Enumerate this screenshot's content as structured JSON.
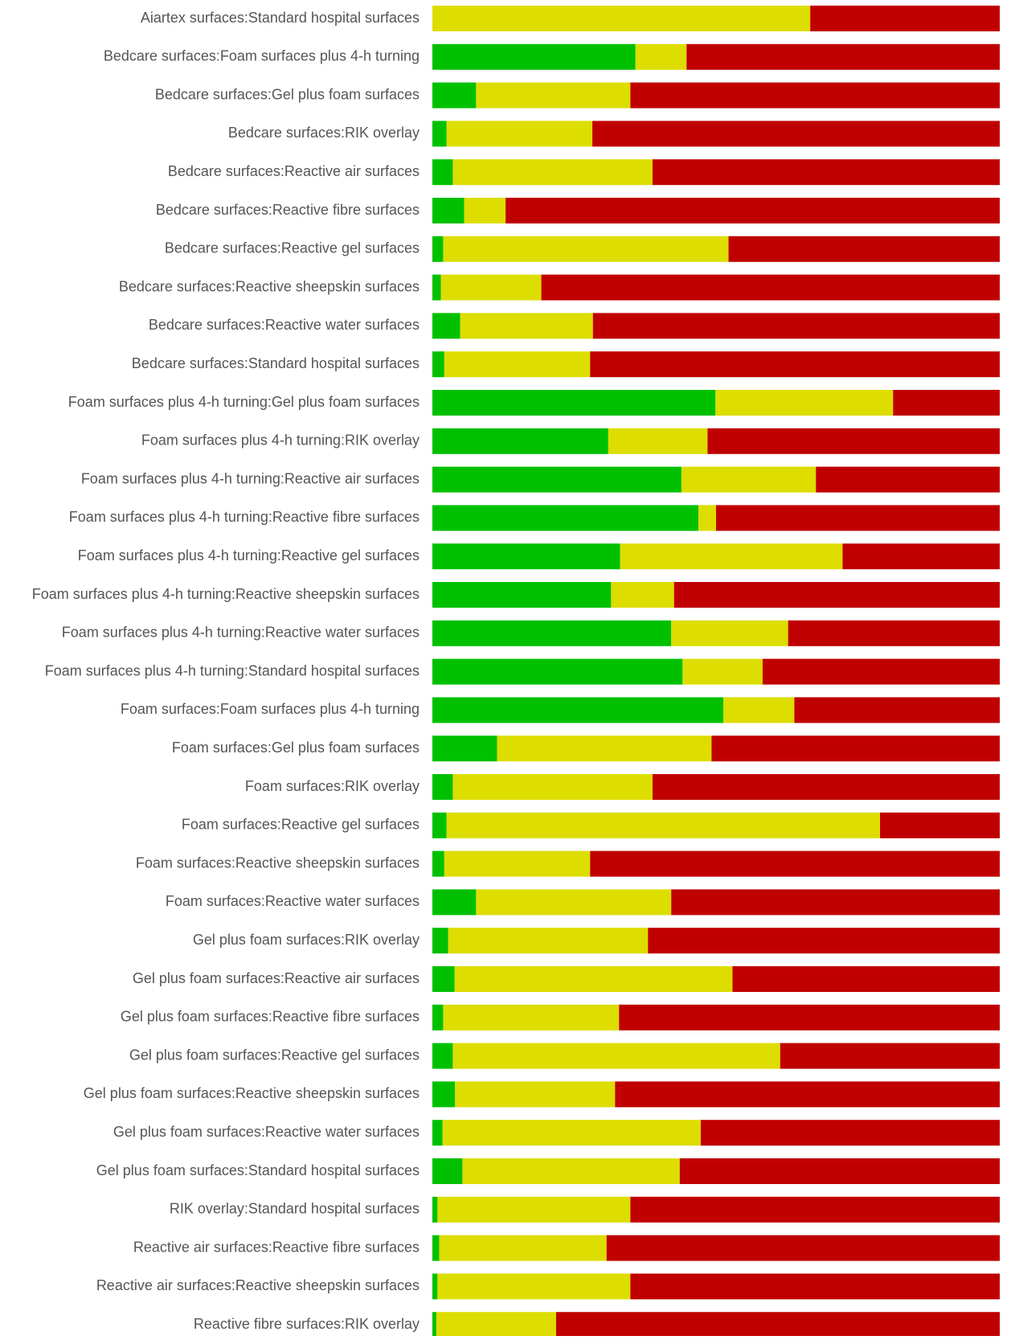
{
  "chart_data": {
    "type": "stacked-bar-horizontal",
    "categories": [
      "Aiartex surfaces:Standard hospital surfaces",
      "Bedcare surfaces:Foam surfaces plus 4-h turning",
      "Bedcare surfaces:Gel plus foam surfaces",
      "Bedcare surfaces:RIK overlay",
      "Bedcare surfaces:Reactive air surfaces",
      "Bedcare surfaces:Reactive fibre surfaces",
      "Bedcare surfaces:Reactive gel surfaces",
      "Bedcare surfaces:Reactive sheepskin surfaces",
      "Bedcare surfaces:Reactive water surfaces",
      "Bedcare surfaces:Standard hospital surfaces",
      "Foam surfaces plus 4-h turning:Gel plus foam surfaces",
      "Foam surfaces plus 4-h turning:RIK overlay",
      "Foam surfaces plus 4-h turning:Reactive air surfaces",
      "Foam surfaces plus 4-h turning:Reactive fibre surfaces",
      "Foam surfaces plus 4-h turning:Reactive gel surfaces",
      "Foam surfaces plus 4-h turning:Reactive sheepskin surfaces",
      "Foam surfaces plus 4-h turning:Reactive water surfaces",
      "Foam surfaces plus 4-h turning:Standard hospital surfaces",
      "Foam surfaces:Foam surfaces plus 4-h turning",
      "Foam surfaces:Gel plus foam surfaces",
      "Foam surfaces:RIK overlay",
      "Foam surfaces:Reactive gel surfaces",
      "Foam surfaces:Reactive sheepskin surfaces",
      "Foam surfaces:Reactive water surfaces",
      "Gel plus foam surfaces:RIK overlay",
      "Gel plus foam surfaces:Reactive air surfaces",
      "Gel plus foam surfaces:Reactive fibre surfaces",
      "Gel plus foam surfaces:Reactive gel surfaces",
      "Gel plus foam surfaces:Reactive sheepskin surfaces",
      "Gel plus foam surfaces:Reactive water surfaces",
      "Gel plus foam surfaces:Standard hospital surfaces",
      "RIK overlay:Standard hospital surfaces",
      "Reactive air surfaces:Reactive fibre surfaces",
      "Reactive air surfaces:Reactive sheepskin surfaces",
      "Reactive fibre surfaces:RIK overlay"
    ],
    "series": [
      {
        "color": "#00c000",
        "values": [
          0,
          35.8,
          7.7,
          2.5,
          3.6,
          5.6,
          1.9,
          1.5,
          4.9,
          2.1,
          49.9,
          31.0,
          43.9,
          46.9,
          33.1,
          31.5,
          42.1,
          44.1,
          51.3,
          11.4,
          3.6,
          2.5,
          2.1,
          7.7,
          2.8,
          3.9,
          1.9,
          3.6,
          4.0,
          1.8,
          5.3,
          0.9,
          1.2,
          0.9,
          0.7
        ]
      },
      {
        "color": "#dddd00",
        "values": [
          66.6,
          9.0,
          27.2,
          25.7,
          35.2,
          7.3,
          50.3,
          17.7,
          23.4,
          25.7,
          31.3,
          17.5,
          23.7,
          3.1,
          39.2,
          11.1,
          20.6,
          14.1,
          12.5,
          37.8,
          35.2,
          76.4,
          25.7,
          34.4,
          35.2,
          49.0,
          31.0,
          57.7,
          28.2,
          45.5,
          38.3,
          34.0,
          29.5,
          34.0,
          21.1
        ]
      },
      {
        "color": "#c00000",
        "values": [
          33.4,
          55.2,
          65.1,
          71.8,
          61.2,
          87.1,
          47.8,
          80.8,
          71.7,
          72.2,
          18.8,
          51.5,
          32.4,
          50.0,
          27.7,
          57.4,
          37.3,
          41.8,
          36.2,
          50.8,
          61.2,
          21.1,
          72.2,
          57.9,
          62.0,
          47.1,
          67.1,
          38.7,
          67.8,
          52.7,
          56.4,
          65.1,
          69.3,
          65.1,
          78.2
        ]
      }
    ],
    "xlim": [
      0,
      100
    ]
  }
}
